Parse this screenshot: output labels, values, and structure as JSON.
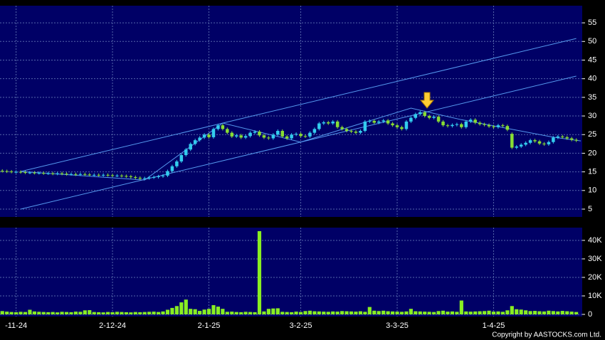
{
  "chart_data": [
    {
      "type": "candlestick",
      "up_color": "#33ccee",
      "down_color": "#88dd33",
      "line_color": "#5599ee",
      "grid": true,
      "xlim": [
        -0.5,
        126.3
      ],
      "ylim": [
        2.9,
        59.6
      ],
      "yticks": [
        5,
        10,
        15,
        20,
        25,
        30,
        35,
        40,
        45,
        50,
        55
      ],
      "open": [
        15.3,
        15.2,
        15.1,
        15.0,
        15.0,
        14.9,
        14.8,
        14.8,
        14.7,
        14.7,
        14.6,
        14.6,
        14.5,
        14.6,
        14.5,
        14.4,
        14.4,
        14.3,
        14.4,
        14.3,
        14.2,
        14.2,
        14.1,
        14.2,
        14.1,
        14.0,
        14.0,
        13.9,
        13.8,
        13.6,
        13.4,
        13.2,
        13.3,
        13.5,
        13.6,
        13.8,
        14.0,
        15.2,
        16.5,
        17.8,
        19.5,
        21.0,
        22.5,
        23.5,
        24.2,
        25.0,
        24.3,
        26.5,
        27.5,
        26.5,
        25.5,
        24.5,
        24.8,
        24.2,
        24.6,
        25.5,
        25.8,
        24.8,
        24.2,
        24.0,
        25.0,
        26.0,
        24.5,
        24.0,
        25.0,
        25.2,
        24.6,
        24.5,
        25.5,
        26.5,
        28.0,
        28.3,
        28.0,
        28.5,
        27.0,
        26.5,
        26.0,
        25.8,
        25.5,
        26.0,
        28.5,
        28.7,
        28.2,
        28.5,
        28.8,
        28.0,
        27.5,
        27.0,
        26.5,
        28.5,
        29.5,
        30.5,
        31.0,
        30.0,
        29.5,
        29.8,
        28.5,
        27.5,
        27.3,
        27.6,
        27.8,
        27.0,
        28.5,
        29.0,
        28.2,
        27.8,
        27.6,
        27.2,
        27.0,
        27.5,
        27.3,
        25.2,
        21.5,
        21.8,
        22.3,
        22.8,
        23.5,
        23.2,
        22.6,
        22.4,
        23.0,
        24.2,
        24.5,
        24.3,
        24.0,
        23.6
      ],
      "high": [
        15.7,
        15.6,
        15.5,
        15.4,
        15.4,
        15.3,
        15.2,
        15.2,
        15.1,
        15.1,
        15.0,
        15.0,
        15.0,
        15.0,
        14.9,
        14.8,
        14.8,
        14.8,
        14.8,
        14.7,
        14.6,
        14.6,
        14.6,
        14.6,
        14.5,
        14.4,
        14.4,
        14.3,
        14.2,
        14.0,
        13.8,
        13.7,
        13.9,
        14.0,
        14.2,
        14.4,
        15.6,
        16.9,
        18.2,
        19.9,
        21.4,
        22.9,
        23.9,
        24.6,
        25.4,
        25.4,
        26.9,
        27.9,
        27.9,
        26.9,
        25.9,
        25.2,
        25.2,
        25.0,
        25.9,
        26.2,
        26.2,
        25.2,
        24.6,
        25.4,
        26.4,
        26.4,
        24.9,
        25.4,
        25.6,
        25.6,
        25.0,
        25.9,
        26.9,
        28.4,
        28.7,
        28.7,
        28.9,
        28.9,
        27.4,
        26.9,
        26.4,
        26.2,
        26.4,
        28.9,
        29.1,
        29.1,
        28.9,
        29.2,
        29.2,
        28.4,
        27.9,
        27.4,
        28.9,
        29.9,
        30.9,
        31.4,
        31.4,
        30.4,
        30.2,
        30.2,
        28.9,
        27.9,
        28.0,
        28.2,
        28.2,
        28.9,
        29.4,
        29.4,
        28.6,
        28.2,
        28.0,
        27.6,
        27.9,
        27.9,
        27.7,
        25.6,
        22.2,
        22.7,
        23.2,
        23.9,
        23.9,
        23.6,
        23.0,
        23.4,
        24.6,
        24.9,
        24.9,
        24.7,
        24.4,
        24.0
      ],
      "low": [
        14.8,
        14.7,
        14.6,
        14.6,
        14.5,
        14.4,
        14.4,
        14.3,
        14.3,
        14.2,
        14.2,
        14.1,
        14.1,
        14.1,
        14.0,
        14.0,
        13.9,
        13.9,
        13.9,
        13.8,
        13.8,
        13.7,
        13.7,
        13.7,
        13.6,
        13.6,
        13.5,
        13.4,
        13.2,
        13.0,
        12.8,
        12.8,
        12.9,
        13.1,
        13.2,
        13.4,
        13.6,
        14.8,
        16.1,
        17.4,
        19.1,
        20.6,
        22.1,
        23.1,
        23.8,
        23.9,
        23.9,
        26.1,
        26.1,
        25.1,
        24.1,
        24.1,
        23.8,
        23.8,
        24.2,
        25.1,
        24.4,
        23.8,
        23.6,
        23.6,
        24.6,
        24.1,
        23.6,
        23.6,
        24.6,
        24.2,
        24.1,
        24.1,
        25.1,
        26.1,
        27.6,
        27.6,
        27.6,
        26.6,
        26.1,
        25.6,
        25.4,
        25.1,
        25.1,
        25.6,
        28.1,
        27.8,
        27.8,
        28.1,
        27.6,
        27.1,
        26.6,
        26.1,
        26.1,
        28.1,
        29.1,
        30.1,
        29.6,
        29.1,
        29.1,
        28.1,
        27.1,
        26.9,
        26.9,
        27.2,
        26.6,
        26.6,
        28.1,
        27.8,
        27.4,
        27.2,
        26.8,
        26.6,
        26.6,
        26.9,
        25.9,
        21.1,
        21.1,
        21.4,
        21.9,
        22.4,
        22.8,
        22.2,
        22.0,
        22.0,
        22.6,
        23.8,
        23.9,
        23.6,
        23.2,
        23.0
      ],
      "close": [
        15.2,
        15.1,
        15.0,
        15.0,
        14.9,
        14.8,
        14.8,
        14.7,
        14.7,
        14.6,
        14.6,
        14.5,
        14.6,
        14.5,
        14.4,
        14.4,
        14.3,
        14.4,
        14.3,
        14.2,
        14.2,
        14.1,
        14.2,
        14.1,
        14.0,
        14.0,
        13.9,
        13.8,
        13.6,
        13.4,
        13.2,
        13.3,
        13.5,
        13.6,
        13.8,
        14.0,
        15.2,
        16.5,
        17.8,
        19.5,
        21.0,
        22.5,
        23.5,
        24.2,
        25.0,
        24.3,
        26.5,
        27.5,
        26.5,
        25.5,
        24.5,
        24.8,
        24.2,
        24.6,
        25.5,
        25.8,
        24.8,
        24.2,
        24.0,
        25.0,
        26.0,
        24.5,
        24.0,
        25.0,
        25.2,
        24.6,
        24.5,
        25.5,
        26.5,
        28.0,
        28.3,
        28.0,
        28.5,
        27.0,
        26.5,
        26.0,
        25.8,
        25.5,
        26.0,
        28.5,
        28.7,
        28.2,
        28.5,
        28.8,
        28.0,
        27.5,
        27.0,
        26.5,
        28.5,
        29.5,
        30.5,
        31.0,
        30.0,
        29.5,
        29.8,
        28.5,
        27.5,
        27.3,
        27.6,
        27.8,
        27.0,
        28.5,
        29.0,
        28.2,
        27.8,
        27.6,
        27.2,
        27.0,
        27.5,
        27.3,
        26.3,
        21.5,
        21.8,
        22.3,
        22.8,
        23.5,
        23.2,
        22.6,
        22.4,
        23.0,
        24.2,
        24.5,
        24.3,
        24.0,
        23.6,
        23.4
      ],
      "lines": [
        {
          "x": [
            4,
            125
          ],
          "y": [
            15.1,
            50.8
          ]
        },
        {
          "x": [
            4,
            125
          ],
          "y": [
            5.0,
            40.7
          ]
        },
        {
          "x": [
            4,
            31,
            48,
            65,
            89,
            100,
            120,
            126
          ],
          "y": [
            15.1,
            12.8,
            28.1,
            23.0,
            32.1,
            29.0,
            24.3,
            23.3
          ]
        }
      ]
    },
    {
      "type": "bar",
      "color": "#88ee22",
      "grid": true,
      "xlim": [
        -0.5,
        126.3
      ],
      "ylim": [
        0,
        46900
      ],
      "yticks": [
        0,
        {
          "value": 10000,
          "label": "10K"
        },
        {
          "value": 20000,
          "label": "20K"
        },
        {
          "value": 30000,
          "label": "30K"
        },
        {
          "value": 40000,
          "label": "40K"
        }
      ],
      "xticks": [
        {
          "value": 3,
          "label": "-11-24"
        },
        {
          "value": 24,
          "label": "2-12-24"
        },
        {
          "value": 45,
          "label": "2-1-25"
        },
        {
          "value": 65,
          "label": "3-2-25"
        },
        {
          "value": 86,
          "label": "3-3-25"
        },
        {
          "value": 107,
          "label": "1-4-25"
        }
      ],
      "values": [
        1800,
        1500,
        1300,
        1200,
        1400,
        1300,
        2500,
        1600,
        1400,
        1300,
        1200,
        1300,
        1100,
        1400,
        1300,
        1200,
        1500,
        1400,
        2200,
        2300,
        1300,
        1200,
        1100,
        1300,
        1200,
        1400,
        1300,
        1200,
        1100,
        1300,
        1200,
        1300,
        1400,
        1500,
        1300,
        1600,
        2500,
        3500,
        4500,
        6500,
        8000,
        3000,
        2800,
        1900,
        2600,
        3000,
        5000,
        4200,
        3000,
        1400,
        1500,
        1300,
        1200,
        1400,
        1300,
        1200,
        45000,
        1600,
        3000,
        3200,
        3300,
        1400,
        1300,
        1200,
        1500,
        1300,
        1800,
        2000,
        1700,
        1600,
        1500,
        1400,
        1600,
        1500,
        1800,
        1700,
        1600,
        1500,
        1700,
        1400,
        4000,
        2000,
        1800,
        2000,
        1700,
        1600,
        1500,
        1400,
        1600,
        3000,
        1700,
        1600,
        1500,
        1400,
        1300,
        1800,
        2000,
        1500,
        1600,
        1400,
        7500,
        1600,
        1500,
        1600,
        1700,
        1800,
        2000,
        1500,
        1600,
        1400,
        2200,
        4500,
        2800,
        2600,
        2200,
        1800,
        1900,
        1700,
        1600,
        2000,
        1800,
        1600,
        1900,
        1700,
        1500,
        1300
      ]
    }
  ],
  "footer": "Copyright by AASTOCKS.com Ltd."
}
